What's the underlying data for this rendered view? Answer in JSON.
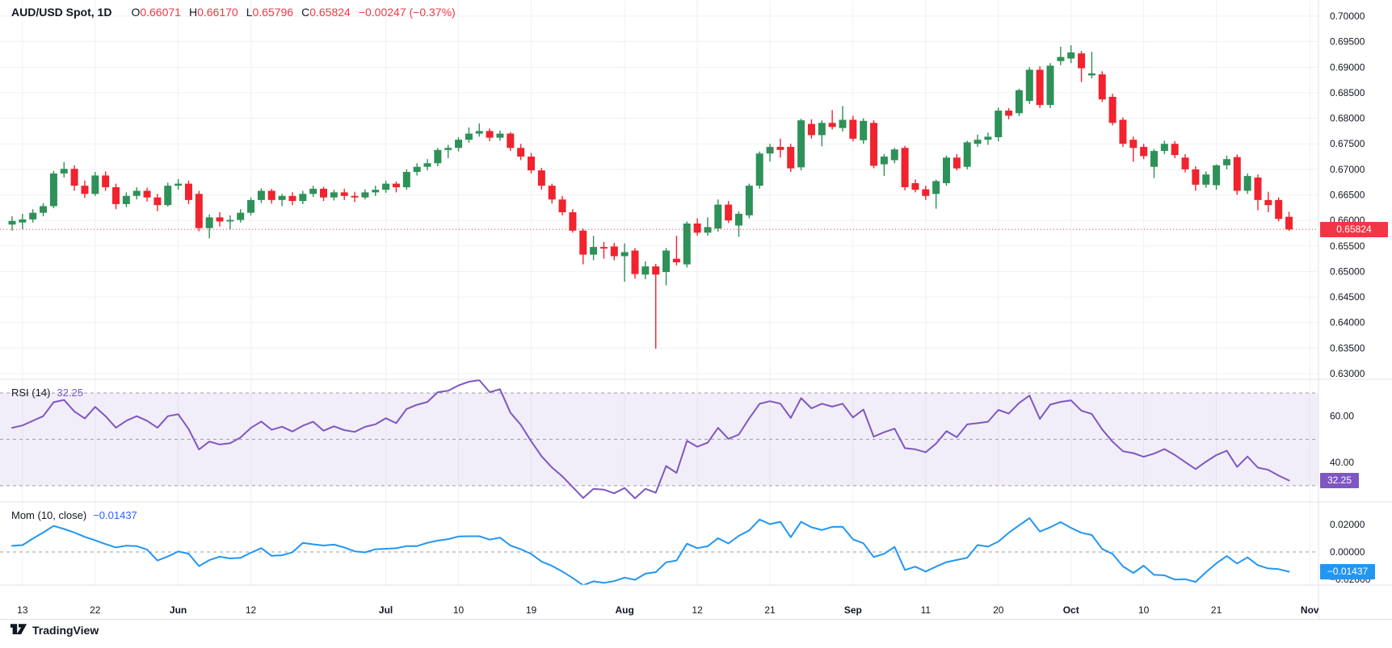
{
  "header": {
    "symbol": "AUD/USD Spot, 1D",
    "ohlc": [
      {
        "k": "O",
        "v": "0.66071"
      },
      {
        "k": "H",
        "v": "0.66170"
      },
      {
        "k": "L",
        "v": "0.65796"
      },
      {
        "k": "C",
        "v": "0.65824"
      }
    ],
    "change": "−0.00247 (−0.37%)"
  },
  "last_price": {
    "label": "0.65824",
    "value": 0.65824
  },
  "rsi": {
    "label": "RSI (14)",
    "value_label": "32.25",
    "value": 32.25,
    "upper_band": 70,
    "middle_band": 50,
    "lower_band": 30,
    "axis_labels": [
      {
        "v": 60,
        "t": "60.00"
      },
      {
        "v": 40,
        "t": "40.00"
      }
    ]
  },
  "mom": {
    "label": "Mom (10, close)",
    "value_label": "−0.01437",
    "value": -0.01437,
    "axis_labels": [
      {
        "v": 0.02,
        "t": "0.02000"
      },
      {
        "v": 0,
        "t": "0.00000"
      },
      {
        "v": -0.02,
        "t": "−0.02000"
      }
    ]
  },
  "price_axis_labels": [
    "0.70000",
    "0.69500",
    "0.69000",
    "0.68500",
    "0.68000",
    "0.67500",
    "0.67000",
    "0.66500",
    "0.66000",
    "0.65500",
    "0.65000",
    "0.64500",
    "0.64000",
    "0.63500",
    "0.63000"
  ],
  "time_axis": {
    "ticks": [
      {
        "i": 1,
        "t": "13"
      },
      {
        "i": 8,
        "t": "22"
      },
      {
        "i": 16,
        "t": "Jun",
        "b": true
      },
      {
        "i": 23,
        "t": "12"
      },
      {
        "i": 36,
        "t": "Jul",
        "b": true
      },
      {
        "i": 43,
        "t": "10"
      },
      {
        "i": 50,
        "t": "19"
      },
      {
        "i": 59,
        "t": "Aug",
        "b": true
      },
      {
        "i": 66,
        "t": "12"
      },
      {
        "i": 73,
        "t": "21"
      },
      {
        "i": 81,
        "t": "Sep",
        "b": true
      },
      {
        "i": 88,
        "t": "11"
      },
      {
        "i": 95,
        "t": "20"
      },
      {
        "i": 102,
        "t": "Oct",
        "b": true
      },
      {
        "i": 109,
        "t": "10"
      },
      {
        "i": 116,
        "t": "21"
      },
      {
        "i": 125,
        "t": "Nov",
        "b": true
      }
    ]
  },
  "footer": {
    "brand": "TradingView"
  },
  "colors": {
    "up": "#2E9158",
    "down": "#F0232E",
    "rsi_line": "#7E57C2",
    "rsi_band_fill": "rgba(126,87,194,0.10)",
    "mom_line": "#2196F3",
    "dashed": "#9B9EA6",
    "last_price": "#F23645",
    "grid": "#F0F1F4",
    "separator": "#E0E3EB",
    "text": "#131722"
  },
  "chart_data": {
    "type": "candlestick+indicators",
    "symbol": "AUD/USD Spot",
    "interval": "1D",
    "price_ylim": [
      0.6289,
      0.70316
    ],
    "price_grid_step": 0.005,
    "rsi_ylim": [
      23.0,
      75.9
    ],
    "mom_ylim": [
      -0.0241,
      0.0365
    ],
    "indicators": [
      {
        "name": "RSI",
        "period": 14,
        "last": 32.25
      },
      {
        "name": "Momentum",
        "period": 10,
        "source": "close",
        "last": -0.01437
      }
    ],
    "candles": [
      [
        0.6592,
        0.6608,
        0.658,
        0.6599
      ],
      [
        0.6596,
        0.6613,
        0.6583,
        0.6602
      ],
      [
        0.6602,
        0.6622,
        0.6596,
        0.6615
      ],
      [
        0.6615,
        0.6634,
        0.6608,
        0.6628
      ],
      [
        0.6628,
        0.6697,
        0.6624,
        0.6692
      ],
      [
        0.6692,
        0.6714,
        0.6684,
        0.6701
      ],
      [
        0.6701,
        0.6708,
        0.6658,
        0.6668
      ],
      [
        0.6668,
        0.6678,
        0.6644,
        0.6652
      ],
      [
        0.6652,
        0.6695,
        0.6648,
        0.6688
      ],
      [
        0.6688,
        0.6696,
        0.6658,
        0.6665
      ],
      [
        0.6665,
        0.6672,
        0.6622,
        0.6632
      ],
      [
        0.6632,
        0.6655,
        0.6626,
        0.6648
      ],
      [
        0.6648,
        0.6665,
        0.6641,
        0.6658
      ],
      [
        0.6658,
        0.6664,
        0.6637,
        0.6645
      ],
      [
        0.6645,
        0.6652,
        0.6618,
        0.663
      ],
      [
        0.663,
        0.6674,
        0.6627,
        0.6668
      ],
      [
        0.6668,
        0.6681,
        0.666,
        0.6672
      ],
      [
        0.6672,
        0.6678,
        0.6632,
        0.664
      ],
      [
        0.6652,
        0.6658,
        0.6579,
        0.6585
      ],
      [
        0.6585,
        0.6612,
        0.6565,
        0.6606
      ],
      [
        0.6606,
        0.6616,
        0.6588,
        0.6598
      ],
      [
        0.6598,
        0.661,
        0.6582,
        0.6601
      ],
      [
        0.6601,
        0.6622,
        0.6596,
        0.6615
      ],
      [
        0.6615,
        0.6645,
        0.661,
        0.664
      ],
      [
        0.664,
        0.6663,
        0.6634,
        0.6658
      ],
      [
        0.6658,
        0.6662,
        0.6633,
        0.664
      ],
      [
        0.664,
        0.6652,
        0.6628,
        0.6648
      ],
      [
        0.6648,
        0.6655,
        0.663,
        0.6638
      ],
      [
        0.6638,
        0.6658,
        0.6632,
        0.6652
      ],
      [
        0.6652,
        0.6668,
        0.6646,
        0.6662
      ],
      [
        0.6662,
        0.6666,
        0.6638,
        0.6645
      ],
      [
        0.6645,
        0.666,
        0.6639,
        0.6655
      ],
      [
        0.6655,
        0.6662,
        0.664,
        0.6648
      ],
      [
        0.6648,
        0.6656,
        0.6636,
        0.6645
      ],
      [
        0.6645,
        0.6661,
        0.6641,
        0.6655
      ],
      [
        0.6655,
        0.6668,
        0.6648,
        0.666
      ],
      [
        0.666,
        0.6678,
        0.6654,
        0.6672
      ],
      [
        0.6672,
        0.6676,
        0.6655,
        0.6665
      ],
      [
        0.6665,
        0.67,
        0.666,
        0.6695
      ],
      [
        0.6695,
        0.6712,
        0.6688,
        0.6705
      ],
      [
        0.6705,
        0.672,
        0.6698,
        0.6712
      ],
      [
        0.6712,
        0.6742,
        0.6706,
        0.6738
      ],
      [
        0.6738,
        0.6748,
        0.6722,
        0.6742
      ],
      [
        0.6742,
        0.6763,
        0.6735,
        0.6758
      ],
      [
        0.6758,
        0.6782,
        0.6752,
        0.677
      ],
      [
        0.677,
        0.679,
        0.6764,
        0.6775
      ],
      [
        0.6775,
        0.678,
        0.6755,
        0.6762
      ],
      [
        0.6762,
        0.6776,
        0.6756,
        0.677
      ],
      [
        0.677,
        0.6773,
        0.6736,
        0.6742
      ],
      [
        0.6742,
        0.675,
        0.6718,
        0.6725
      ],
      [
        0.6725,
        0.6732,
        0.6692,
        0.6698
      ],
      [
        0.6698,
        0.6703,
        0.666,
        0.6668
      ],
      [
        0.6668,
        0.6672,
        0.6633,
        0.6641
      ],
      [
        0.6641,
        0.6648,
        0.661,
        0.6616
      ],
      [
        0.6616,
        0.6622,
        0.6576,
        0.658
      ],
      [
        0.658,
        0.6584,
        0.6514,
        0.6533
      ],
      [
        0.6533,
        0.657,
        0.6522,
        0.6548
      ],
      [
        0.6548,
        0.6558,
        0.6525,
        0.6545
      ],
      [
        0.6549,
        0.6556,
        0.6522,
        0.653
      ],
      [
        0.653,
        0.6555,
        0.648,
        0.6538
      ],
      [
        0.6541,
        0.6546,
        0.6486,
        0.6495
      ],
      [
        0.6494,
        0.652,
        0.6485,
        0.651
      ],
      [
        0.651,
        0.6515,
        0.6349,
        0.6494
      ],
      [
        0.6499,
        0.6546,
        0.6473,
        0.6541
      ],
      [
        0.6525,
        0.657,
        0.6512,
        0.6518
      ],
      [
        0.6514,
        0.6598,
        0.6508,
        0.6594
      ],
      [
        0.6594,
        0.6604,
        0.657,
        0.6576
      ],
      [
        0.6576,
        0.6606,
        0.657,
        0.6587
      ],
      [
        0.6584,
        0.6641,
        0.6578,
        0.6631
      ],
      [
        0.6631,
        0.6638,
        0.6595,
        0.66
      ],
      [
        0.659,
        0.6618,
        0.6568,
        0.6613
      ],
      [
        0.661,
        0.6672,
        0.6604,
        0.6668
      ],
      [
        0.6668,
        0.6735,
        0.6662,
        0.6731
      ],
      [
        0.6731,
        0.675,
        0.6715,
        0.6744
      ],
      [
        0.6744,
        0.676,
        0.6723,
        0.6738
      ],
      [
        0.6744,
        0.675,
        0.6695,
        0.6702
      ],
      [
        0.6704,
        0.6799,
        0.6698,
        0.6796
      ],
      [
        0.6789,
        0.6798,
        0.676,
        0.6767
      ],
      [
        0.6767,
        0.6796,
        0.6745,
        0.6791
      ],
      [
        0.6791,
        0.6816,
        0.6778,
        0.6783
      ],
      [
        0.6781,
        0.6824,
        0.6774,
        0.6797
      ],
      [
        0.6797,
        0.6805,
        0.6755,
        0.676
      ],
      [
        0.6757,
        0.68,
        0.675,
        0.6795
      ],
      [
        0.6791,
        0.6796,
        0.6702,
        0.6707
      ],
      [
        0.671,
        0.673,
        0.6687,
        0.6725
      ],
      [
        0.6718,
        0.6742,
        0.6712,
        0.6739
      ],
      [
        0.6742,
        0.6746,
        0.6659,
        0.6665
      ],
      [
        0.6673,
        0.668,
        0.6655,
        0.666
      ],
      [
        0.6661,
        0.6668,
        0.664,
        0.6648
      ],
      [
        0.6652,
        0.668,
        0.6623,
        0.6677
      ],
      [
        0.6673,
        0.6727,
        0.6668,
        0.6723
      ],
      [
        0.6723,
        0.673,
        0.6698,
        0.6702
      ],
      [
        0.6705,
        0.6756,
        0.67,
        0.6753
      ],
      [
        0.675,
        0.6768,
        0.6744,
        0.6758
      ],
      [
        0.6758,
        0.6772,
        0.6748,
        0.6764
      ],
      [
        0.6763,
        0.6821,
        0.6755,
        0.6815
      ],
      [
        0.6815,
        0.682,
        0.6798,
        0.6805
      ],
      [
        0.681,
        0.6858,
        0.6804,
        0.6855
      ],
      [
        0.6834,
        0.69,
        0.6828,
        0.6895
      ],
      [
        0.6895,
        0.6902,
        0.682,
        0.6826
      ],
      [
        0.6826,
        0.6908,
        0.682,
        0.6903
      ],
      [
        0.6912,
        0.694,
        0.6904,
        0.692
      ],
      [
        0.6917,
        0.6943,
        0.6908,
        0.6929
      ],
      [
        0.6927,
        0.6932,
        0.6871,
        0.6898
      ],
      [
        0.6884,
        0.693,
        0.6878,
        0.6888
      ],
      [
        0.6886,
        0.6892,
        0.6832,
        0.6837
      ],
      [
        0.6842,
        0.6848,
        0.6786,
        0.6791
      ],
      [
        0.6797,
        0.6802,
        0.6744,
        0.675
      ],
      [
        0.6758,
        0.6764,
        0.6715,
        0.6742
      ],
      [
        0.6744,
        0.675,
        0.672,
        0.6726
      ],
      [
        0.6705,
        0.674,
        0.6683,
        0.6736
      ],
      [
        0.6736,
        0.6756,
        0.673,
        0.675
      ],
      [
        0.675,
        0.6755,
        0.6722,
        0.6728
      ],
      [
        0.6723,
        0.673,
        0.6694,
        0.67
      ],
      [
        0.67,
        0.6706,
        0.6658,
        0.667
      ],
      [
        0.667,
        0.6696,
        0.6664,
        0.669
      ],
      [
        0.6669,
        0.671,
        0.666,
        0.6708
      ],
      [
        0.6708,
        0.6727,
        0.67,
        0.672
      ],
      [
        0.6724,
        0.6729,
        0.665,
        0.6658
      ],
      [
        0.6658,
        0.6692,
        0.6652,
        0.6687
      ],
      [
        0.6684,
        0.669,
        0.662,
        0.664
      ],
      [
        0.664,
        0.6656,
        0.6616,
        0.663
      ],
      [
        0.664,
        0.6645,
        0.6598,
        0.6603
      ],
      [
        0.66071,
        0.6617,
        0.65796,
        0.65824
      ]
    ],
    "rsi_warmup": [
      55,
      56,
      58,
      60,
      66,
      67,
      62,
      59,
      64,
      60,
      55,
      58,
      60,
      58,
      55,
      60
    ],
    "mom_warmup": [
      0.0045,
      0.005,
      0.0098,
      0.0142,
      0.019,
      0.0168,
      0.0142,
      0.011,
      0.0085,
      0.0058
    ]
  }
}
